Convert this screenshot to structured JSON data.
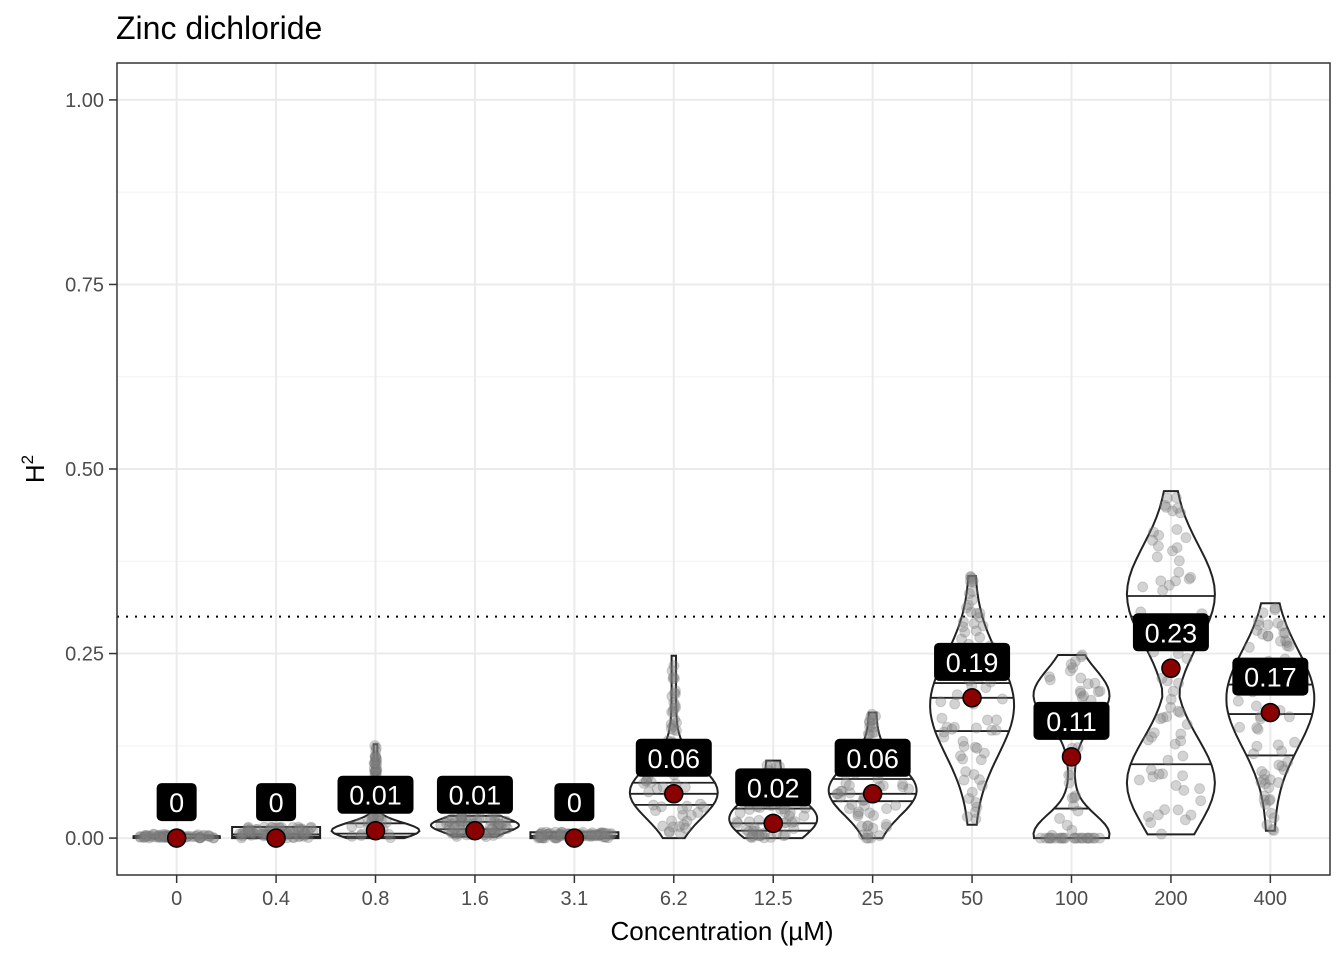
{
  "chart_data": {
    "type": "violin",
    "title": "Zinc dichloride",
    "xlabel": "Concentration (µM)",
    "ylabel": "H",
    "ylabel_superscript": "2",
    "categories": [
      "0",
      "0.4",
      "0.8",
      "1.6",
      "3.1",
      "6.2",
      "12.5",
      "25",
      "50",
      "100",
      "200",
      "400"
    ],
    "ylim": [
      -0.05,
      1.05
    ],
    "yticks": [
      0.0,
      0.25,
      0.5,
      0.75,
      1.0
    ],
    "ytick_labels": [
      "0.00",
      "0.25",
      "0.50",
      "0.75",
      "1.00"
    ],
    "threshold": 0.3,
    "series": [
      {
        "category": "0",
        "mean": 0.0,
        "label": "0",
        "min": 0.0,
        "max": 0.005,
        "q1": 0.0,
        "median": 0.0,
        "q3": 0.001
      },
      {
        "category": "0.4",
        "mean": 0.0,
        "label": "0",
        "min": 0.0,
        "max": 0.015,
        "q1": 0.0,
        "median": 0.002,
        "q3": 0.005
      },
      {
        "category": "0.8",
        "mean": 0.01,
        "label": "0.01",
        "min": 0.0,
        "max": 0.127,
        "q1": 0.002,
        "median": 0.006,
        "q3": 0.02
      },
      {
        "category": "1.6",
        "mean": 0.01,
        "label": "0.01",
        "min": 0.002,
        "max": 0.03,
        "q1": 0.005,
        "median": 0.012,
        "q3": 0.022
      },
      {
        "category": "3.1",
        "mean": 0.0,
        "label": "0",
        "min": 0.0,
        "max": 0.008,
        "q1": 0.0,
        "median": 0.001,
        "q3": 0.003
      },
      {
        "category": "6.2",
        "mean": 0.06,
        "label": "0.06",
        "min": 0.0,
        "max": 0.247,
        "q1": 0.045,
        "median": 0.06,
        "q3": 0.075
      },
      {
        "category": "12.5",
        "mean": 0.02,
        "label": "0.02",
        "min": 0.0,
        "max": 0.105,
        "q1": 0.01,
        "median": 0.02,
        "q3": 0.04
      },
      {
        "category": "25",
        "mean": 0.06,
        "label": "0.06",
        "min": 0.0,
        "max": 0.17,
        "q1": 0.05,
        "median": 0.06,
        "q3": 0.08
      },
      {
        "category": "50",
        "mean": 0.19,
        "label": "0.19",
        "min": 0.018,
        "max": 0.355,
        "q1": 0.145,
        "median": 0.19,
        "q3": 0.21
      },
      {
        "category": "100",
        "mean": 0.11,
        "label": "0.11",
        "min": 0.0,
        "max": 0.248,
        "q1": 0.0,
        "median": 0.04,
        "q3": 0.18
      },
      {
        "category": "200",
        "mean": 0.23,
        "label": "0.23",
        "min": 0.005,
        "max": 0.47,
        "q1": 0.1,
        "median": 0.3,
        "q3": 0.328
      },
      {
        "category": "400",
        "mean": 0.17,
        "label": "0.17",
        "min": 0.01,
        "max": 0.318,
        "q1": 0.112,
        "median": 0.168,
        "q3": 0.208
      }
    ],
    "colors": {
      "mean_point": "#8b0000",
      "jitter": "#808080",
      "label_bg": "#000000",
      "label_text": "#ffffff",
      "grid": "#ebebeb"
    }
  }
}
